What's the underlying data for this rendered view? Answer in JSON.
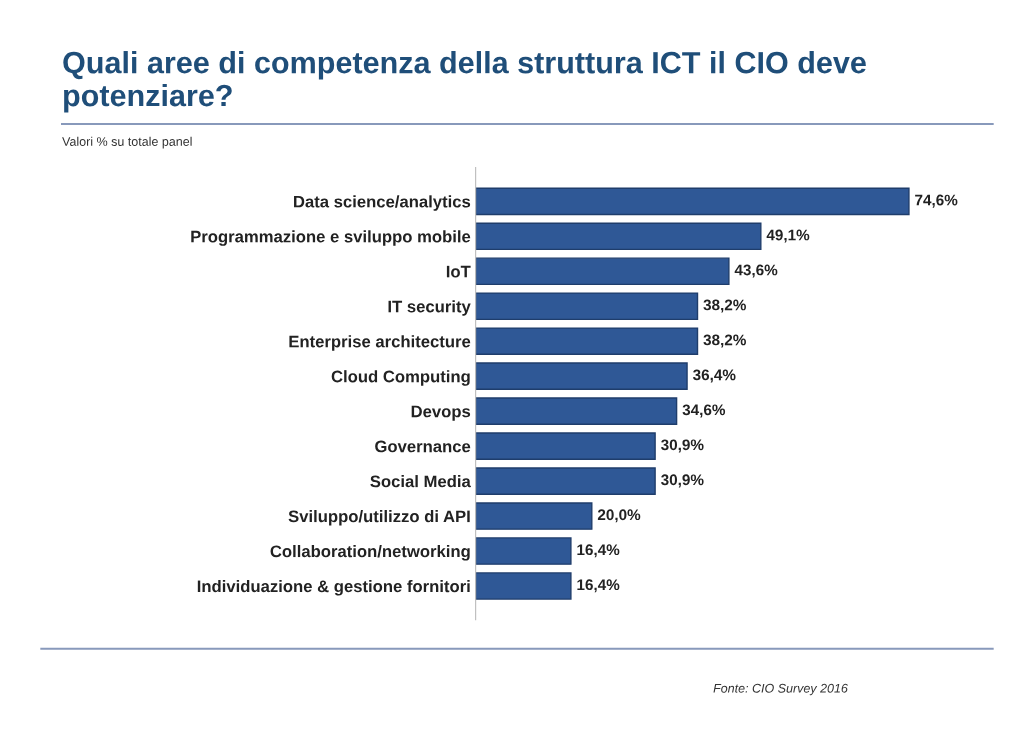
{
  "chart_data": {
    "type": "bar",
    "orientation": "horizontal",
    "title": "Quali aree di competenza della struttura ICT il CIO deve potenziare?",
    "subtitle": "Valori % su totale panel",
    "categories": [
      "Data science/analytics",
      "Programmazione e sviluppo mobile",
      "IoT",
      "IT security",
      "Enterprise architecture",
      "Cloud Computing",
      "Devops",
      "Governance",
      "Social Media",
      "Sviluppo/utilizzo di API",
      "Collaboration/networking",
      "Individuazione & gestione fornitori"
    ],
    "values": [
      74.6,
      49.1,
      43.6,
      38.2,
      38.2,
      36.4,
      34.6,
      30.9,
      30.9,
      20.0,
      16.4,
      16.4
    ],
    "value_labels": [
      "74,6%",
      "49,1%",
      "43,6%",
      "38,2%",
      "38,2%",
      "36,4%",
      "34,6%",
      "30,9%",
      "30,9%",
      "20,0%",
      "16,4%",
      "16,4%"
    ],
    "color": "#2f5896",
    "grid": false,
    "legend": false,
    "tick_labels": "y",
    "annotations": [
      "Fonte: CIO Survey 2016"
    ]
  }
}
